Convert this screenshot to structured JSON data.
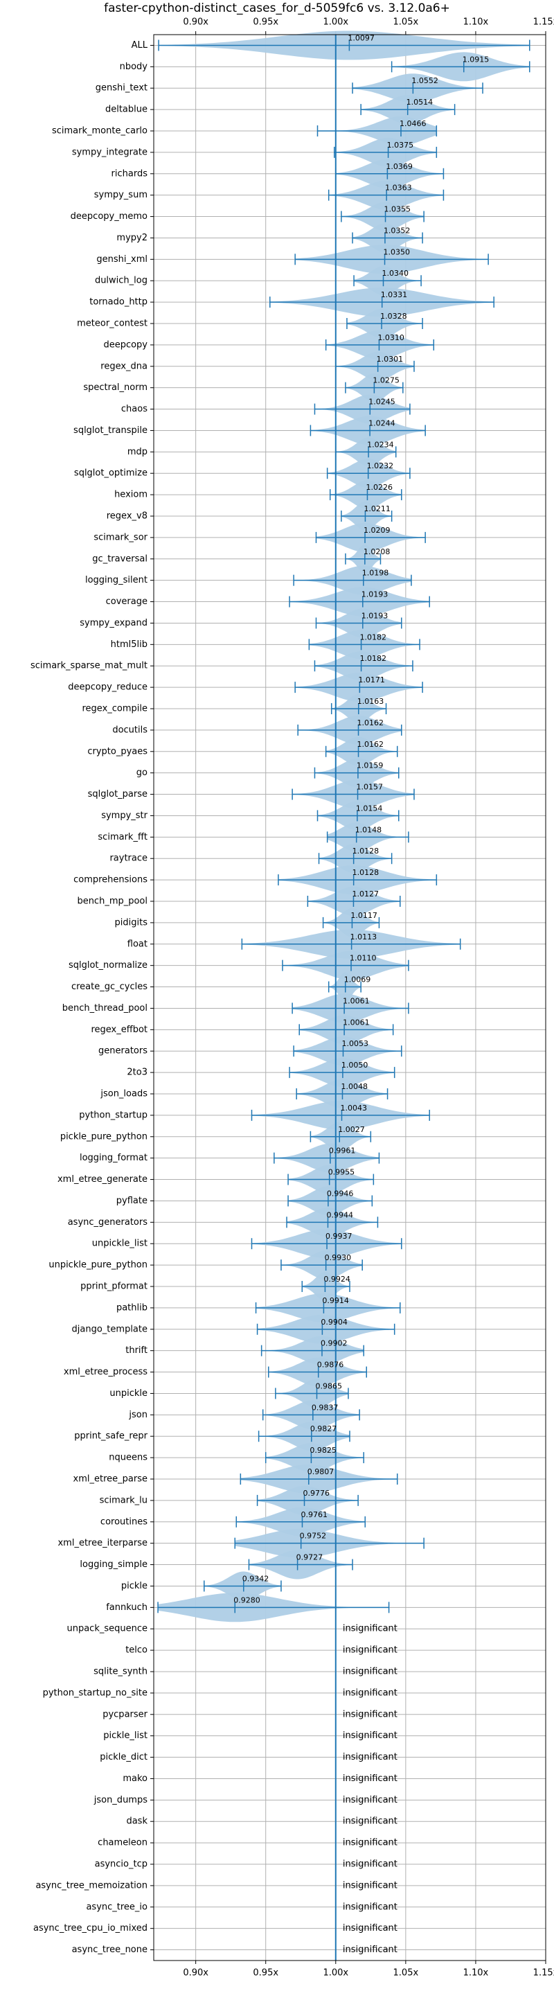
{
  "chart_data": {
    "type": "violin",
    "title": "faster-cpython-distinct_cases_for_d-5059fc6 vs. 3.12.0a6+",
    "xlim": [
      0.87,
      1.15
    ],
    "xticks": [
      0.9,
      0.95,
      1.0,
      1.05,
      1.1,
      1.15
    ],
    "xtick_labels": [
      "0.90x",
      "0.95x",
      "1.00x",
      "1.05x",
      "1.10x",
      "1.15x"
    ],
    "reference_line": 1.0,
    "grid": true,
    "colors": {
      "violin": "#aecde6",
      "line": "#1f77b4",
      "grid": "#b0b0b0",
      "text": "#000000"
    },
    "insignificant_label": "insignificant",
    "benchmarks": [
      {
        "name": "ALL",
        "mean": 1.0097,
        "min": 0.8735,
        "max": 1.1385
      },
      {
        "name": "nbody",
        "mean": 1.0915,
        "min": 1.04,
        "max": 1.1385
      },
      {
        "name": "genshi_text",
        "mean": 1.0552,
        "min": 1.012,
        "max": 1.105
      },
      {
        "name": "deltablue",
        "mean": 1.0514,
        "min": 1.018,
        "max": 1.085
      },
      {
        "name": "scimark_monte_carlo",
        "mean": 1.0466,
        "min": 0.987,
        "max": 1.072
      },
      {
        "name": "sympy_integrate",
        "mean": 1.0375,
        "min": 0.999,
        "max": 1.072
      },
      {
        "name": "richards",
        "mean": 1.0369,
        "min": 1.0,
        "max": 1.077
      },
      {
        "name": "sympy_sum",
        "mean": 1.0363,
        "min": 0.995,
        "max": 1.077
      },
      {
        "name": "deepcopy_memo",
        "mean": 1.0355,
        "min": 1.004,
        "max": 1.063
      },
      {
        "name": "mypy2",
        "mean": 1.0352,
        "min": 1.012,
        "max": 1.062
      },
      {
        "name": "genshi_xml",
        "mean": 1.035,
        "min": 0.971,
        "max": 1.109
      },
      {
        "name": "dulwich_log",
        "mean": 1.034,
        "min": 1.013,
        "max": 1.061
      },
      {
        "name": "tornado_http",
        "mean": 1.0331,
        "min": 0.953,
        "max": 1.113
      },
      {
        "name": "meteor_contest",
        "mean": 1.0328,
        "min": 1.008,
        "max": 1.062
      },
      {
        "name": "deepcopy",
        "mean": 1.031,
        "min": 0.993,
        "max": 1.07
      },
      {
        "name": "regex_dna",
        "mean": 1.0301,
        "min": 1.0,
        "max": 1.056
      },
      {
        "name": "spectral_norm",
        "mean": 1.0275,
        "min": 1.007,
        "max": 1.048
      },
      {
        "name": "chaos",
        "mean": 1.0245,
        "min": 0.985,
        "max": 1.053
      },
      {
        "name": "sqlglot_transpile",
        "mean": 1.0244,
        "min": 0.982,
        "max": 1.064
      },
      {
        "name": "mdp",
        "mean": 1.0234,
        "min": 1.0,
        "max": 1.043
      },
      {
        "name": "sqlglot_optimize",
        "mean": 1.0232,
        "min": 0.994,
        "max": 1.053
      },
      {
        "name": "hexiom",
        "mean": 1.0226,
        "min": 0.996,
        "max": 1.047
      },
      {
        "name": "regex_v8",
        "mean": 1.0211,
        "min": 1.004,
        "max": 1.04
      },
      {
        "name": "scimark_sor",
        "mean": 1.0209,
        "min": 0.986,
        "max": 1.064
      },
      {
        "name": "gc_traversal",
        "mean": 1.0208,
        "min": 1.007,
        "max": 1.032
      },
      {
        "name": "logging_silent",
        "mean": 1.0198,
        "min": 0.97,
        "max": 1.054
      },
      {
        "name": "coverage",
        "mean": 1.0193,
        "min": 0.967,
        "max": 1.067
      },
      {
        "name": "sympy_expand",
        "mean": 1.0193,
        "min": 0.986,
        "max": 1.047
      },
      {
        "name": "html5lib",
        "mean": 1.0182,
        "min": 0.981,
        "max": 1.06
      },
      {
        "name": "scimark_sparse_mat_mult",
        "mean": 1.0182,
        "min": 0.985,
        "max": 1.055
      },
      {
        "name": "deepcopy_reduce",
        "mean": 1.0171,
        "min": 0.971,
        "max": 1.062
      },
      {
        "name": "regex_compile",
        "mean": 1.0163,
        "min": 0.997,
        "max": 1.036
      },
      {
        "name": "docutils",
        "mean": 1.0162,
        "min": 0.973,
        "max": 1.047
      },
      {
        "name": "crypto_pyaes",
        "mean": 1.0162,
        "min": 0.993,
        "max": 1.044
      },
      {
        "name": "go",
        "mean": 1.0159,
        "min": 0.985,
        "max": 1.045
      },
      {
        "name": "sqlglot_parse",
        "mean": 1.0157,
        "min": 0.969,
        "max": 1.056
      },
      {
        "name": "sympy_str",
        "mean": 1.0154,
        "min": 0.987,
        "max": 1.045
      },
      {
        "name": "scimark_fft",
        "mean": 1.0148,
        "min": 0.994,
        "max": 1.052
      },
      {
        "name": "raytrace",
        "mean": 1.0128,
        "min": 0.988,
        "max": 1.04
      },
      {
        "name": "comprehensions",
        "mean": 1.0128,
        "min": 0.959,
        "max": 1.072
      },
      {
        "name": "bench_mp_pool",
        "mean": 1.0127,
        "min": 0.98,
        "max": 1.046
      },
      {
        "name": "pidigits",
        "mean": 1.0117,
        "min": 0.991,
        "max": 1.031
      },
      {
        "name": "float",
        "mean": 1.0113,
        "min": 0.933,
        "max": 1.089
      },
      {
        "name": "sqlglot_normalize",
        "mean": 1.011,
        "min": 0.962,
        "max": 1.052
      },
      {
        "name": "create_gc_cycles",
        "mean": 1.0069,
        "min": 0.995,
        "max": 1.018
      },
      {
        "name": "bench_thread_pool",
        "mean": 1.0061,
        "min": 0.969,
        "max": 1.052
      },
      {
        "name": "regex_effbot",
        "mean": 1.0061,
        "min": 0.974,
        "max": 1.041
      },
      {
        "name": "generators",
        "mean": 1.0053,
        "min": 0.97,
        "max": 1.047
      },
      {
        "name": "2to3",
        "mean": 1.005,
        "min": 0.967,
        "max": 1.042
      },
      {
        "name": "json_loads",
        "mean": 1.0048,
        "min": 0.972,
        "max": 1.037
      },
      {
        "name": "python_startup",
        "mean": 1.0043,
        "min": 0.94,
        "max": 1.067
      },
      {
        "name": "pickle_pure_python",
        "mean": 1.0027,
        "min": 0.982,
        "max": 1.025
      },
      {
        "name": "logging_format",
        "mean": 0.9961,
        "min": 0.956,
        "max": 1.031
      },
      {
        "name": "xml_etree_generate",
        "mean": 0.9955,
        "min": 0.966,
        "max": 1.027
      },
      {
        "name": "pyflate",
        "mean": 0.9946,
        "min": 0.966,
        "max": 1.026
      },
      {
        "name": "async_generators",
        "mean": 0.9944,
        "min": 0.965,
        "max": 1.03
      },
      {
        "name": "unpickle_list",
        "mean": 0.9937,
        "min": 0.94,
        "max": 1.047
      },
      {
        "name": "unpickle_pure_python",
        "mean": 0.993,
        "min": 0.961,
        "max": 1.019
      },
      {
        "name": "pprint_pformat",
        "mean": 0.9924,
        "min": 0.976,
        "max": 1.01
      },
      {
        "name": "pathlib",
        "mean": 0.9914,
        "min": 0.943,
        "max": 1.046
      },
      {
        "name": "django_template",
        "mean": 0.9904,
        "min": 0.944,
        "max": 1.042
      },
      {
        "name": "thrift",
        "mean": 0.9902,
        "min": 0.947,
        "max": 1.02
      },
      {
        "name": "xml_etree_process",
        "mean": 0.9876,
        "min": 0.952,
        "max": 1.022
      },
      {
        "name": "unpickle",
        "mean": 0.9865,
        "min": 0.957,
        "max": 1.009
      },
      {
        "name": "json",
        "mean": 0.9837,
        "min": 0.948,
        "max": 1.017
      },
      {
        "name": "pprint_safe_repr",
        "mean": 0.9827,
        "min": 0.945,
        "max": 1.01
      },
      {
        "name": "nqueens",
        "mean": 0.9825,
        "min": 0.95,
        "max": 1.02
      },
      {
        "name": "xml_etree_parse",
        "mean": 0.9807,
        "min": 0.932,
        "max": 1.044
      },
      {
        "name": "scimark_lu",
        "mean": 0.9776,
        "min": 0.944,
        "max": 1.016
      },
      {
        "name": "coroutines",
        "mean": 0.9761,
        "min": 0.929,
        "max": 1.021
      },
      {
        "name": "xml_etree_iterparse",
        "mean": 0.9752,
        "min": 0.928,
        "max": 1.063
      },
      {
        "name": "logging_simple",
        "mean": 0.9727,
        "min": 0.938,
        "max": 1.012
      },
      {
        "name": "pickle",
        "mean": 0.9342,
        "min": 0.906,
        "max": 0.961
      },
      {
        "name": "fannkuch",
        "mean": 0.928,
        "min": 0.873,
        "max": 1.038
      },
      {
        "name": "unpack_sequence",
        "insignificant": true
      },
      {
        "name": "telco",
        "insignificant": true
      },
      {
        "name": "sqlite_synth",
        "insignificant": true
      },
      {
        "name": "python_startup_no_site",
        "insignificant": true
      },
      {
        "name": "pycparser",
        "insignificant": true
      },
      {
        "name": "pickle_list",
        "insignificant": true
      },
      {
        "name": "pickle_dict",
        "insignificant": true
      },
      {
        "name": "mako",
        "insignificant": true
      },
      {
        "name": "json_dumps",
        "insignificant": true
      },
      {
        "name": "dask",
        "insignificant": true
      },
      {
        "name": "chameleon",
        "insignificant": true
      },
      {
        "name": "asyncio_tcp",
        "insignificant": true
      },
      {
        "name": "async_tree_memoization",
        "insignificant": true
      },
      {
        "name": "async_tree_io",
        "insignificant": true
      },
      {
        "name": "async_tree_cpu_io_mixed",
        "insignificant": true
      },
      {
        "name": "async_tree_none",
        "insignificant": true
      }
    ]
  }
}
